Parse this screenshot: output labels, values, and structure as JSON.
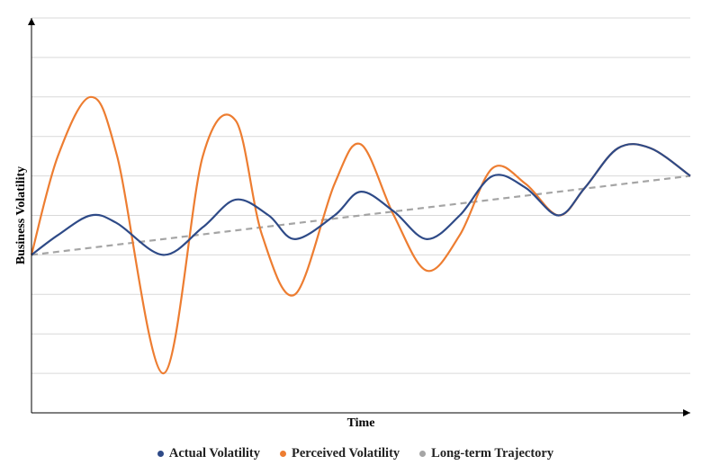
{
  "chart_data": {
    "type": "line",
    "title": "",
    "xlabel": "Time",
    "ylabel": "Business Volatility",
    "xlim": [
      0,
      100
    ],
    "ylim": [
      0,
      10
    ],
    "grid": true,
    "legend_position": "bottom",
    "series": [
      {
        "name": "Actual Volatility",
        "color": "#2E4A87",
        "points": [
          [
            0,
            4
          ],
          [
            4,
            4.5
          ],
          [
            9,
            5
          ],
          [
            13,
            4.8
          ],
          [
            20,
            4
          ],
          [
            26,
            4.7
          ],
          [
            31,
            5.4
          ],
          [
            36,
            5.0
          ],
          [
            40,
            4.4
          ],
          [
            46,
            5.0
          ],
          [
            50,
            5.6
          ],
          [
            55,
            5.1
          ],
          [
            60,
            4.4
          ],
          [
            65,
            5.0
          ],
          [
            70,
            6.0
          ],
          [
            75,
            5.7
          ],
          [
            80,
            5.0
          ],
          [
            84,
            5.7
          ],
          [
            89,
            6.7
          ],
          [
            94,
            6.7
          ],
          [
            100,
            6.0
          ]
        ]
      },
      {
        "name": "Perceived Volatility",
        "color": "#ED7D31",
        "points": [
          [
            0,
            4
          ],
          [
            4,
            6.5
          ],
          [
            9,
            8.0
          ],
          [
            13,
            6.5
          ],
          [
            20,
            1.0
          ],
          [
            26,
            6.5
          ],
          [
            31,
            7.4
          ],
          [
            35,
            4.5
          ],
          [
            40,
            3.0
          ],
          [
            46,
            5.8
          ],
          [
            50,
            6.8
          ],
          [
            55,
            5.0
          ],
          [
            60,
            3.6
          ],
          [
            65,
            4.5
          ],
          [
            70,
            6.2
          ],
          [
            75,
            5.8
          ],
          [
            80,
            5.0
          ],
          [
            84,
            5.7
          ],
          [
            89,
            6.7
          ],
          [
            94,
            6.7
          ],
          [
            100,
            6.0
          ]
        ]
      },
      {
        "name": "Long-term Trajectory",
        "color": "#A5A5A5",
        "dashed": true,
        "points": [
          [
            0,
            4
          ],
          [
            100,
            6.0
          ]
        ]
      }
    ]
  }
}
